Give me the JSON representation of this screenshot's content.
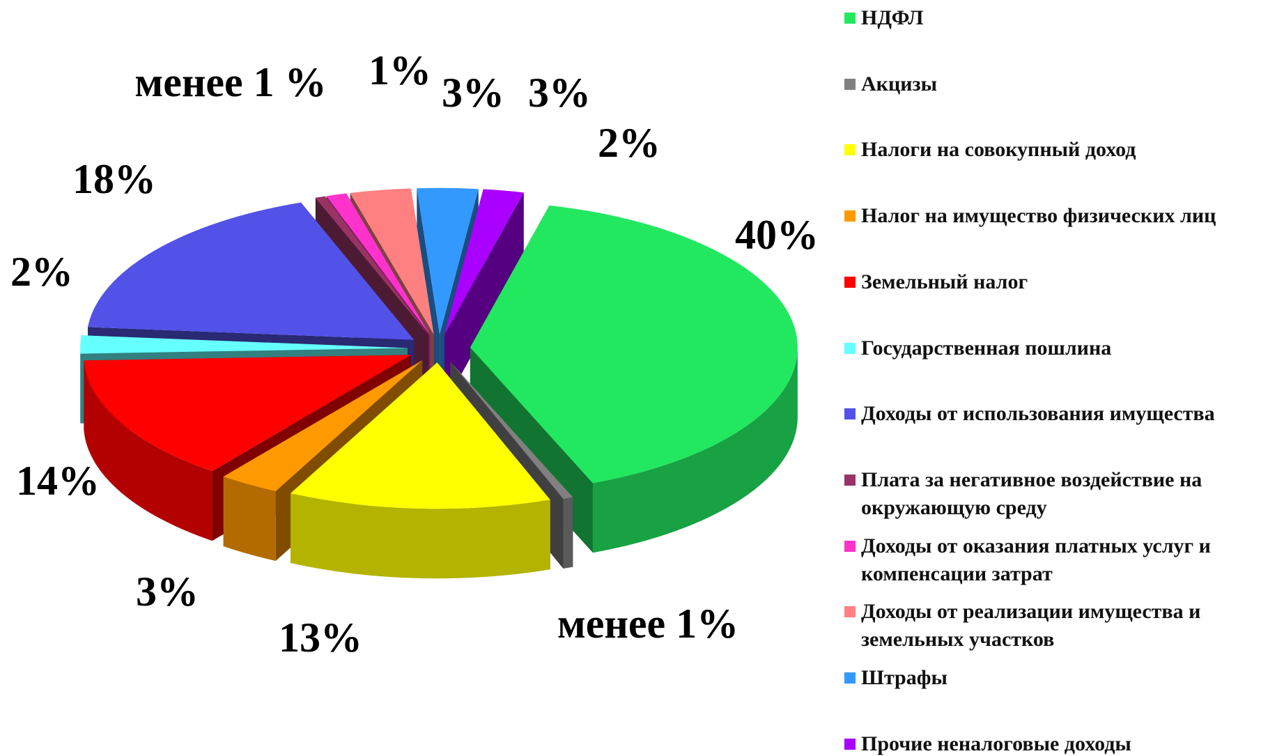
{
  "chart_data": {
    "type": "pie",
    "categories": [
      "НДФЛ",
      "Акцизы",
      "Налоги на совокупный доход",
      "Налог на имущество физических лиц",
      "Земельный налог",
      "Государственная пошлина",
      "Доходы от использования имущества",
      "Плата за негативное воздействие на окружающую среду",
      "Доходы от оказания платных услуг и компенсации затрат",
      "Доходы от реализации  имущества и земельных участков",
      "Штрафы",
      "Прочие неналоговые доходы"
    ],
    "values": [
      40,
      0.5,
      13,
      3,
      14,
      2,
      18,
      0.5,
      1,
      3,
      3,
      2
    ],
    "value_labels": [
      "40%",
      "менее 1%",
      "13%",
      "3%",
      "14%",
      "2%",
      "18%",
      "менее 1 %",
      "1%",
      "3%",
      "3%",
      "2%"
    ],
    "colors": [
      "#22e860",
      "#808080",
      "#ffff00",
      "#ff9900",
      "#ff0000",
      "#66ffff",
      "#5252e8",
      "#993366",
      "#ff33cc",
      "#ff8080",
      "#3399ff",
      "#aa00ff"
    ],
    "legend": "right"
  }
}
